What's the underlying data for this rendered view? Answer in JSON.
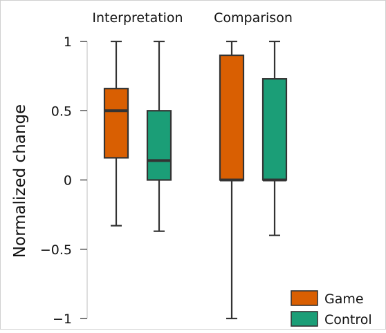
{
  "chart_data": {
    "type": "box",
    "ylabel": "Normalized change",
    "ylim": [
      -1,
      1
    ],
    "yticks": [
      1,
      0.5,
      0,
      -0.5,
      -1
    ],
    "ytick_labels": [
      "1",
      "0.5",
      "0",
      "−0.5",
      "−1"
    ],
    "groups": [
      "Interpretation",
      "Comparison"
    ],
    "series": [
      {
        "name": "Game",
        "color": "#d95f02",
        "boxes": [
          {
            "group": "Interpretation",
            "min": -0.33,
            "q1": 0.16,
            "median": 0.5,
            "q3": 0.66,
            "max": 1
          },
          {
            "group": "Comparison",
            "min": -1,
            "q1": 0,
            "median": 0,
            "q3": 0.9,
            "max": 1
          }
        ]
      },
      {
        "name": "Control",
        "color": "#1b9e77",
        "boxes": [
          {
            "group": "Interpretation",
            "min": -0.37,
            "q1": 0,
            "median": 0.14,
            "q3": 0.5,
            "max": 1
          },
          {
            "group": "Comparison",
            "min": -0.4,
            "q1": 0,
            "median": 0,
            "q3": 0.73,
            "max": 1
          }
        ]
      }
    ],
    "legend": {
      "position": "bottom-right",
      "entries": [
        "Game",
        "Control"
      ]
    },
    "grid": false
  }
}
